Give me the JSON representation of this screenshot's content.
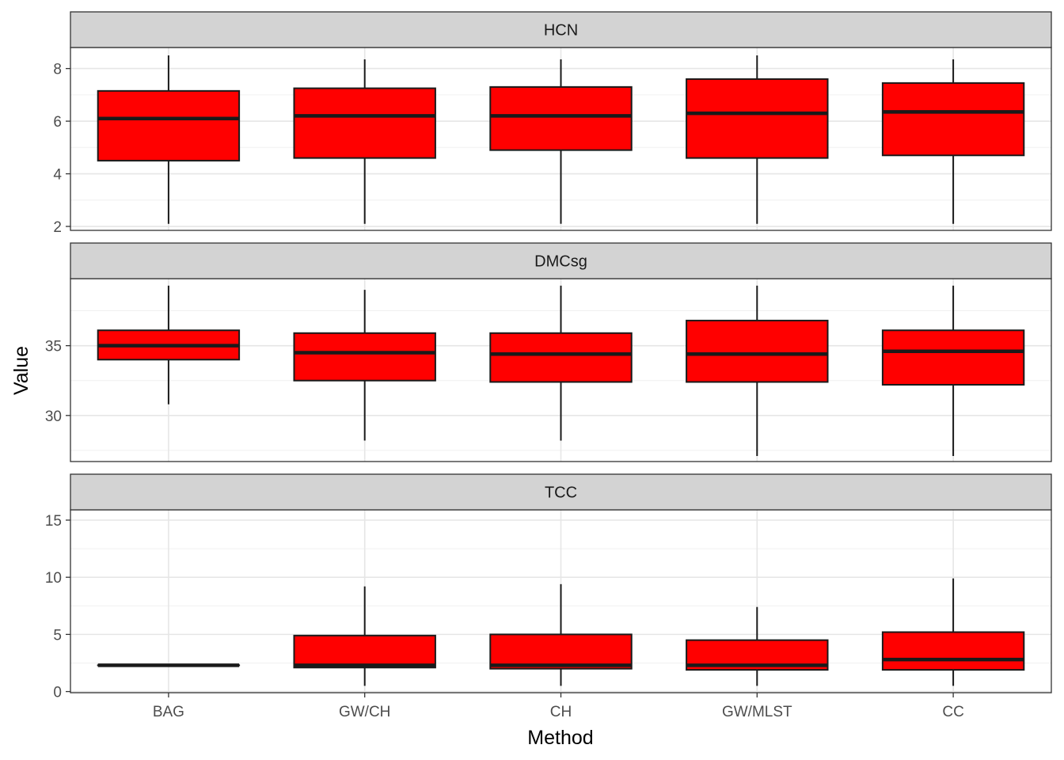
{
  "chart_data": {
    "type": "boxplot",
    "xlabel": "Method",
    "ylabel": "Value",
    "categories": [
      "BAG",
      "GW/CH",
      "CH",
      "GW/MLST",
      "CC"
    ],
    "box_fill": "#ff0000",
    "strip_fill": "#d3d3d3",
    "grid": true,
    "panels": [
      {
        "name": "HCN",
        "ylim": [
          1.85,
          8.8
        ],
        "yticks": [
          2,
          4,
          6,
          8
        ],
        "boxes": [
          {
            "category": "BAG",
            "whisker_low": 2.1,
            "q1": 4.5,
            "median": 6.1,
            "q3": 7.15,
            "whisker_high": 8.5
          },
          {
            "category": "GW/CH",
            "whisker_low": 2.1,
            "q1": 4.6,
            "median": 6.2,
            "q3": 7.25,
            "whisker_high": 8.35
          },
          {
            "category": "CH",
            "whisker_low": 2.1,
            "q1": 4.9,
            "median": 6.2,
            "q3": 7.3,
            "whisker_high": 8.35
          },
          {
            "category": "GW/MLST",
            "whisker_low": 2.1,
            "q1": 4.6,
            "median": 6.3,
            "q3": 7.6,
            "whisker_high": 8.5
          },
          {
            "category": "CC",
            "whisker_low": 2.1,
            "q1": 4.7,
            "median": 6.35,
            "q3": 7.45,
            "whisker_high": 8.35
          }
        ]
      },
      {
        "name": "DMCsg",
        "ylim": [
          26.7,
          39.8
        ],
        "yticks": [
          30,
          35
        ],
        "boxes": [
          {
            "category": "BAG",
            "whisker_low": 30.8,
            "q1": 34.0,
            "median": 35.0,
            "q3": 36.1,
            "whisker_high": 39.3
          },
          {
            "category": "GW/CH",
            "whisker_low": 28.2,
            "q1": 32.5,
            "median": 34.5,
            "q3": 35.9,
            "whisker_high": 39.0
          },
          {
            "category": "CH",
            "whisker_low": 28.2,
            "q1": 32.4,
            "median": 34.4,
            "q3": 35.9,
            "whisker_high": 39.3
          },
          {
            "category": "GW/MLST",
            "whisker_low": 27.1,
            "q1": 32.4,
            "median": 34.4,
            "q3": 36.8,
            "whisker_high": 39.3
          },
          {
            "category": "CC",
            "whisker_low": 27.1,
            "q1": 32.2,
            "median": 34.6,
            "q3": 36.1,
            "whisker_high": 39.3
          }
        ]
      },
      {
        "name": "TCC",
        "ylim": [
          -0.1,
          15.9
        ],
        "yticks": [
          0,
          5,
          10,
          15
        ],
        "boxes": [
          {
            "category": "BAG",
            "whisker_low": 2.3,
            "q1": 2.3,
            "median": 2.3,
            "q3": 2.3,
            "whisker_high": 2.3
          },
          {
            "category": "GW/CH",
            "whisker_low": 0.5,
            "q1": 2.1,
            "median": 2.3,
            "q3": 4.9,
            "whisker_high": 9.2
          },
          {
            "category": "CH",
            "whisker_low": 0.5,
            "q1": 2.0,
            "median": 2.3,
            "q3": 5.0,
            "whisker_high": 9.4
          },
          {
            "category": "GW/MLST",
            "whisker_low": 0.5,
            "q1": 1.9,
            "median": 2.3,
            "q3": 4.5,
            "whisker_high": 7.4
          },
          {
            "category": "CC",
            "whisker_low": 0.5,
            "q1": 1.9,
            "median": 2.8,
            "q3": 5.2,
            "whisker_high": 9.9
          }
        ]
      }
    ]
  }
}
